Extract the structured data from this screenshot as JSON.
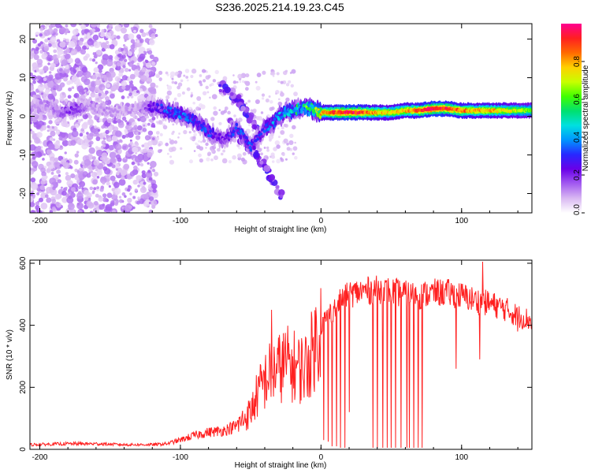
{
  "title": "S236.2025.214.19.23.C45",
  "chart_data": [
    {
      "type": "heatmap",
      "xlabel": "Height of straight line (km)",
      "ylabel": "Frequency (Hz)",
      "xlim": [
        -207,
        150
      ],
      "ylim": [
        -25,
        24
      ],
      "xticks": [
        -200,
        -100,
        0,
        100
      ],
      "yticks": [
        20,
        10,
        0,
        -10,
        -20
      ],
      "colorbar": {
        "label": "Normalized spectral amplitude",
        "range": [
          0,
          1
        ],
        "ticks": [
          "0.0",
          "0.2",
          "0.4",
          "0.6",
          "0.8"
        ],
        "colors": [
          "#ffffff",
          "#d9b8f2",
          "#a35bf0",
          "#6a00e8",
          "#2828ff",
          "#0096ff",
          "#00e0e0",
          "#00e070",
          "#40ff00",
          "#c8ff00",
          "#ffd000",
          "#ff6a00",
          "#ff2020",
          "#ff0090"
        ]
      },
      "ridge": {
        "x": [
          -205,
          -195,
          -185,
          -175,
          -165,
          -150,
          -130,
          -118,
          -110,
          -100,
          -90,
          -80,
          -70,
          -60,
          -50,
          -45,
          -40,
          -35,
          -30,
          -25,
          -20,
          -15,
          -10,
          -5,
          0,
          10,
          20,
          30,
          40,
          50,
          60,
          70,
          80,
          90,
          100,
          110,
          120,
          130,
          140,
          150
        ],
        "y": [
          2,
          3,
          1,
          2,
          3,
          1,
          2,
          2.5,
          1.5,
          0.5,
          -1,
          -4,
          -6,
          -3,
          -8,
          -6,
          -3,
          -2,
          0,
          1,
          1.5,
          2,
          2.5,
          1.5,
          1,
          1,
          1,
          1,
          1,
          1,
          1.5,
          1.5,
          2,
          2,
          1.5,
          1.5,
          1.5,
          1.5,
          1.5,
          1.5
        ],
        "amplitude": [
          0.12,
          0.12,
          0.15,
          0.2,
          0.12,
          0.1,
          0.1,
          0.25,
          0.3,
          0.35,
          0.3,
          0.3,
          0.2,
          0.3,
          0.3,
          0.25,
          0.3,
          0.35,
          0.4,
          0.45,
          0.45,
          0.5,
          0.55,
          0.6,
          0.7,
          0.85,
          0.9,
          0.85,
          0.75,
          0.7,
          0.75,
          0.85,
          0.9,
          0.85,
          0.8,
          0.75,
          0.75,
          0.7,
          0.65,
          0.6
        ]
      },
      "branches": [
        {
          "x": [
            -72,
            -65,
            -58,
            -52,
            -45
          ],
          "y": [
            8,
            6,
            4,
            0,
            -3
          ]
        },
        {
          "x": [
            -65,
            -58,
            -50,
            -42,
            -35,
            -28
          ],
          "y": [
            -2,
            -5,
            -8,
            -12,
            -16,
            -21
          ]
        }
      ]
    },
    {
      "type": "line",
      "xlabel": "Height of straight line (km)",
      "ylabel": "SNR (10 * v/v)",
      "xlim": [
        -207,
        150
      ],
      "ylim": [
        0,
        610
      ],
      "xticks": [
        -200,
        -100,
        0,
        100
      ],
      "yticks": [
        0,
        200,
        400,
        600
      ],
      "series": [
        {
          "color": "#ff2020",
          "envelope": {
            "x": [
              -207,
              -180,
              -160,
              -140,
              -120,
              -110,
              -100,
              -90,
              -80,
              -70,
              -60,
              -50,
              -45,
              -40,
              -35,
              -30,
              -25,
              -20,
              -15,
              -10,
              -5,
              0,
              5,
              10,
              20,
              30,
              40,
              50,
              60,
              70,
              80,
              90,
              100,
              110,
              120,
              130,
              140,
              150
            ],
            "y": [
              15,
              18,
              18,
              15,
              15,
              18,
              30,
              45,
              55,
              60,
              75,
              120,
              180,
              220,
              250,
              260,
              280,
              270,
              260,
              270,
              330,
              400,
              430,
              460,
              500,
              510,
              515,
              510,
              500,
              495,
              505,
              505,
              495,
              480,
              470,
              455,
              430,
              415
            ]
          },
          "dropouts": [
            {
              "x": 37,
              "y": 5
            },
            {
              "x": 40,
              "y": 5
            },
            {
              "x": 44,
              "y": 5
            },
            {
              "x": 47,
              "y": 5
            },
            {
              "x": 50,
              "y": 5
            },
            {
              "x": 53,
              "y": 5
            },
            {
              "x": 57,
              "y": 5
            },
            {
              "x": 61,
              "y": 5
            },
            {
              "x": 63,
              "y": 5
            },
            {
              "x": 66,
              "y": 5
            },
            {
              "x": 69,
              "y": 5
            },
            {
              "x": 72,
              "y": 5
            },
            {
              "x": 2,
              "y": 30
            },
            {
              "x": 5,
              "y": 25
            },
            {
              "x": 8,
              "y": 10
            },
            {
              "x": 11,
              "y": 10
            },
            {
              "x": 14,
              "y": 5
            },
            {
              "x": 17,
              "y": 5
            },
            {
              "x": 20,
              "y": 120
            },
            {
              "x": 96,
              "y": 260
            },
            {
              "x": 113,
              "y": 290
            },
            {
              "x": 140,
              "y": 380
            }
          ],
          "peaks": [
            {
              "x": 115,
              "y": 605
            },
            {
              "x": -20,
              "y": 300
            },
            {
              "x": -35,
              "y": 450
            }
          ]
        }
      ]
    }
  ]
}
